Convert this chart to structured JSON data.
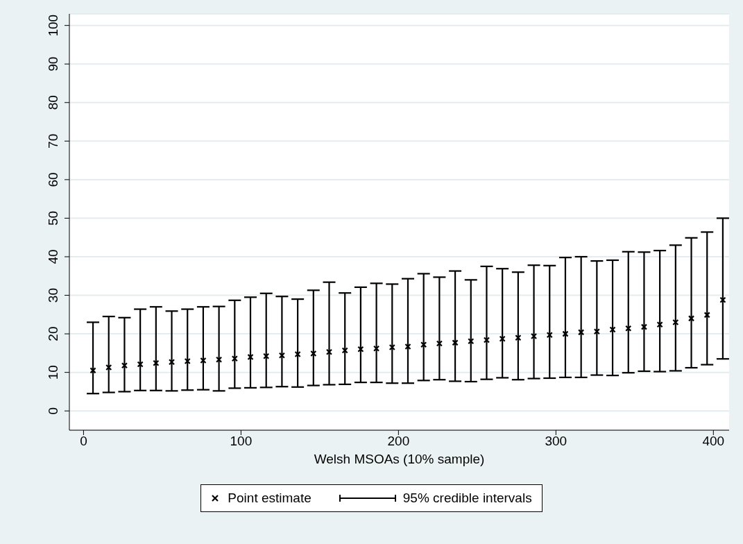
{
  "chart_data": {
    "type": "scatter",
    "xlabel": "Welsh MSOAs (10% sample)",
    "xlim": [
      -9,
      410
    ],
    "xticks": [
      0,
      100,
      200,
      300,
      400
    ],
    "ylim": [
      -5,
      103
    ],
    "yticks": [
      0,
      10,
      20,
      30,
      40,
      50,
      60,
      70,
      80,
      90,
      100
    ],
    "grid": "y",
    "legend": "bottom",
    "marker": "cross",
    "x": [
      6,
      16,
      26,
      36,
      46,
      56,
      66,
      76,
      86,
      96,
      106,
      116,
      126,
      136,
      146,
      156,
      166,
      176,
      186,
      196,
      206,
      216,
      226,
      236,
      246,
      256,
      266,
      276,
      286,
      296,
      306,
      316,
      326,
      336,
      346,
      356,
      366,
      376,
      386,
      396,
      406
    ],
    "series": [
      {
        "name": "Point estimate",
        "color": "#000000",
        "values": [
          10.5,
          11.3,
          11.8,
          12.1,
          12.4,
          12.7,
          12.9,
          13.1,
          13.3,
          13.6,
          14,
          14.2,
          14.4,
          14.7,
          14.9,
          15.3,
          15.7,
          16,
          16.2,
          16.5,
          16.7,
          17.2,
          17.5,
          17.7,
          18.1,
          18.4,
          18.7,
          19,
          19.4,
          19.7,
          20,
          20.4,
          20.6,
          21.1,
          21.4,
          21.8,
          22.4,
          23,
          24,
          24.9,
          28.8
        ],
        "errors": [
          [
            4.5,
            23
          ],
          [
            4.8,
            24.5
          ],
          [
            5,
            24.2
          ],
          [
            5.3,
            26.4
          ],
          [
            5.3,
            27
          ],
          [
            5.2,
            25.9
          ],
          [
            5.4,
            26.4
          ],
          [
            5.5,
            27
          ],
          [
            5.2,
            27.1
          ],
          [
            5.9,
            28.7
          ],
          [
            6,
            29.5
          ],
          [
            6.1,
            30.5
          ],
          [
            6.3,
            29.7
          ],
          [
            6.2,
            29
          ],
          [
            6.6,
            31.3
          ],
          [
            6.8,
            33.4
          ],
          [
            6.9,
            30.6
          ],
          [
            7.4,
            32.1
          ],
          [
            7.4,
            33.1
          ],
          [
            7.2,
            32.9
          ],
          [
            7.2,
            34.3
          ],
          [
            7.9,
            35.6
          ],
          [
            8.1,
            34.7
          ],
          [
            7.7,
            36.3
          ],
          [
            7.6,
            34
          ],
          [
            8.2,
            37.5
          ],
          [
            8.6,
            36.9
          ],
          [
            8.1,
            36
          ],
          [
            8.4,
            37.8
          ],
          [
            8.5,
            37.7
          ],
          [
            8.7,
            39.8
          ],
          [
            8.7,
            40
          ],
          [
            9.3,
            38.9
          ],
          [
            9.2,
            39.1
          ],
          [
            9.9,
            41.3
          ],
          [
            10.3,
            41.2
          ],
          [
            10.2,
            41.6
          ],
          [
            10.4,
            43
          ],
          [
            11.2,
            44.9
          ],
          [
            12,
            46.4
          ],
          [
            13.5,
            50
          ]
        ]
      }
    ],
    "annotations": [
      "95% credible intervals"
    ]
  }
}
